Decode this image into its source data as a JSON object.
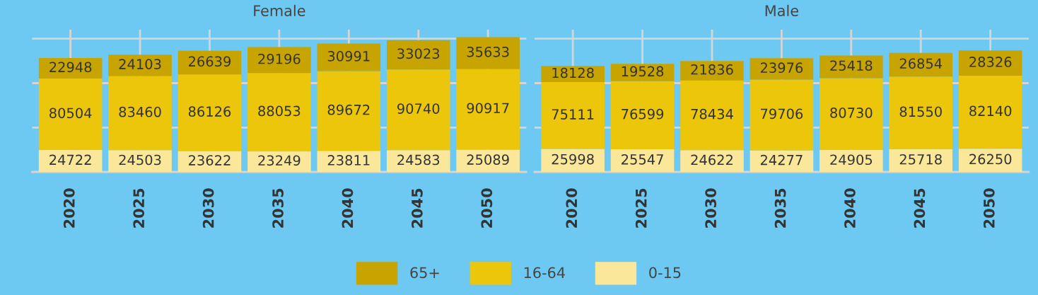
{
  "chart_data": [
    {
      "type": "bar",
      "title": "Female",
      "stacked": true,
      "data_labels": true,
      "grid": true,
      "legend": "bottom",
      "tick_labels": "x",
      "categories": [
        "2020",
        "2025",
        "2030",
        "2035",
        "2040",
        "2045",
        "2050"
      ],
      "ylim": [
        0,
        160000
      ],
      "yticks": [
        {
          "value": 0,
          "label": null
        },
        {
          "value": 50000,
          "label": null
        },
        {
          "value": 100000,
          "label": null
        },
        {
          "value": 150000,
          "label": null
        }
      ],
      "series": [
        {
          "name": "0-15",
          "color": "#fbe79a",
          "values": [
            24722,
            24503,
            23622,
            23249,
            23811,
            24583,
            25089
          ]
        },
        {
          "name": "16-64",
          "color": "#ebc60a",
          "values": [
            80504,
            83460,
            86126,
            88053,
            89672,
            90740,
            90917
          ]
        },
        {
          "name": "65+",
          "color": "#c8a400",
          "values": [
            22948,
            24103,
            26639,
            29196,
            30991,
            33023,
            35633
          ]
        }
      ]
    },
    {
      "type": "bar",
      "title": "Male",
      "stacked": true,
      "data_labels": true,
      "grid": true,
      "legend": "bottom",
      "tick_labels": "x",
      "categories": [
        "2020",
        "2025",
        "2030",
        "2035",
        "2040",
        "2045",
        "2050"
      ],
      "ylim": [
        0,
        160000
      ],
      "yticks": [
        {
          "value": 0,
          "label": null
        },
        {
          "value": 50000,
          "label": null
        },
        {
          "value": 100000,
          "label": null
        },
        {
          "value": 150000,
          "label": null
        }
      ],
      "series": [
        {
          "name": "0-15",
          "color": "#fbe79a",
          "values": [
            25998,
            25547,
            24622,
            24277,
            24905,
            25718,
            26250
          ]
        },
        {
          "name": "16-64",
          "color": "#ebc60a",
          "values": [
            75111,
            76599,
            78434,
            79706,
            80730,
            81550,
            82140
          ]
        },
        {
          "name": "65+",
          "color": "#c8a400",
          "values": [
            18128,
            19528,
            21836,
            23976,
            25418,
            26854,
            28326
          ]
        }
      ]
    }
  ]
}
